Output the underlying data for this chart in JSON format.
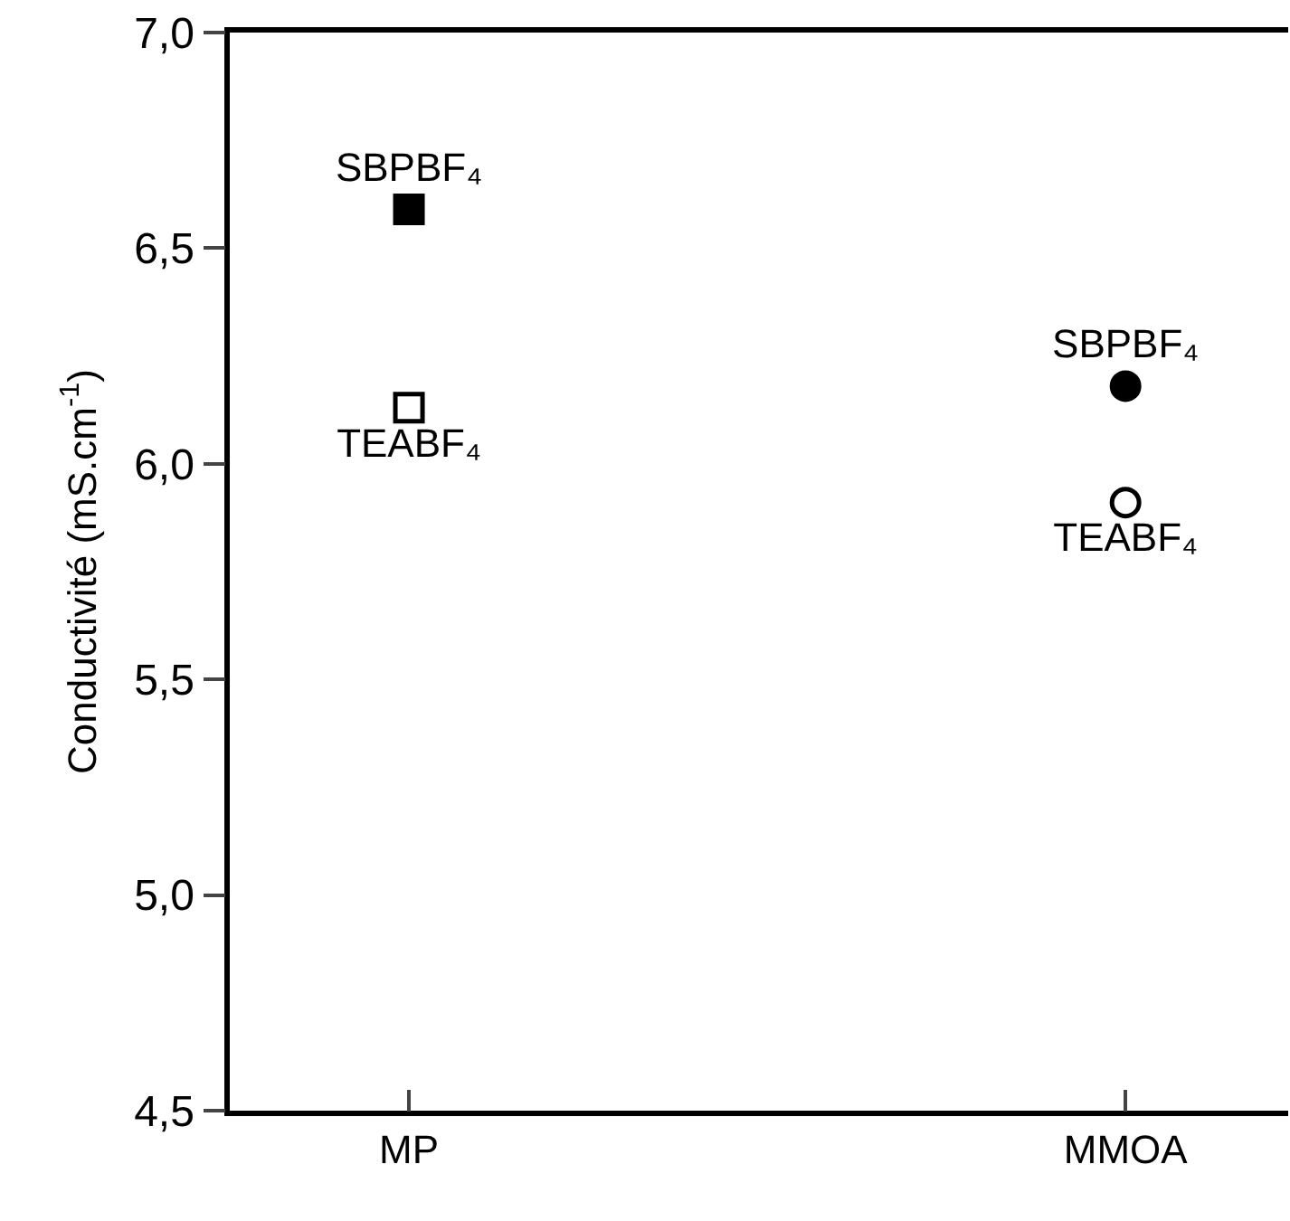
{
  "chart_data": {
    "type": "scatter",
    "ylabel": "Conductivité (mS.cm$^{-1}$)",
    "categories": [
      "MP",
      "MMOA"
    ],
    "ylim": [
      4.5,
      7.0
    ],
    "yticks": [
      {
        "value": 4.5,
        "label": "4,5"
      },
      {
        "value": 5.0,
        "label": "5,0"
      },
      {
        "value": 5.5,
        "label": "5,5"
      },
      {
        "value": 6.0,
        "label": "6,0"
      },
      {
        "value": 6.5,
        "label": "6,5"
      },
      {
        "value": 7.0,
        "label": "7,0"
      }
    ],
    "legend": false,
    "series": [
      {
        "name": "SBPBF₄",
        "x": [
          "MP"
        ],
        "values": [
          6.59
        ],
        "marker": "square",
        "color": "#000000"
      },
      {
        "name": "TEABF₄",
        "x": [
          "MP"
        ],
        "values": [
          6.13
        ],
        "marker": "square",
        "color": "#ffffff"
      },
      {
        "name": "SBPBF₄",
        "x": [
          "MMOA"
        ],
        "values": [
          6.18
        ],
        "marker": "circle",
        "color": "#000000"
      },
      {
        "name": "TEABF₄",
        "x": [
          "MMOA"
        ],
        "values": [
          5.91
        ],
        "marker": "circle",
        "color": "#ffffff"
      }
    ]
  }
}
